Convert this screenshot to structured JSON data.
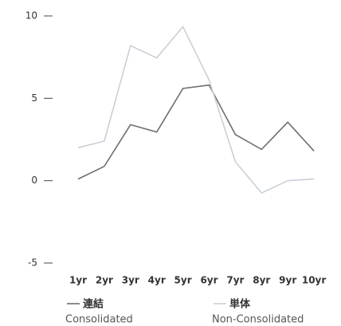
{
  "chart_data": {
    "type": "line",
    "categories": [
      "1yr",
      "2yr",
      "3yr",
      "4yr",
      "5yr",
      "6yr",
      "7yr",
      "8yr",
      "9yr",
      "10yr"
    ],
    "series": [
      {
        "name": "連結",
        "subtitle": "Consolidated",
        "color": "#6e6e6e",
        "values": [
          0.1,
          0.87,
          3.4,
          2.95,
          5.6,
          5.8,
          2.8,
          1.9,
          3.55,
          1.8
        ]
      },
      {
        "name": "単体",
        "subtitle": "Non-Consolidated",
        "color": "#c9d0d7",
        "values": [
          2.0,
          2.4,
          8.2,
          7.45,
          9.35,
          6.1,
          1.15,
          -0.75,
          0,
          0.1
        ]
      }
    ],
    "ylim": [
      -5,
      10
    ],
    "yticks": [
      10,
      5,
      0,
      -5
    ]
  }
}
